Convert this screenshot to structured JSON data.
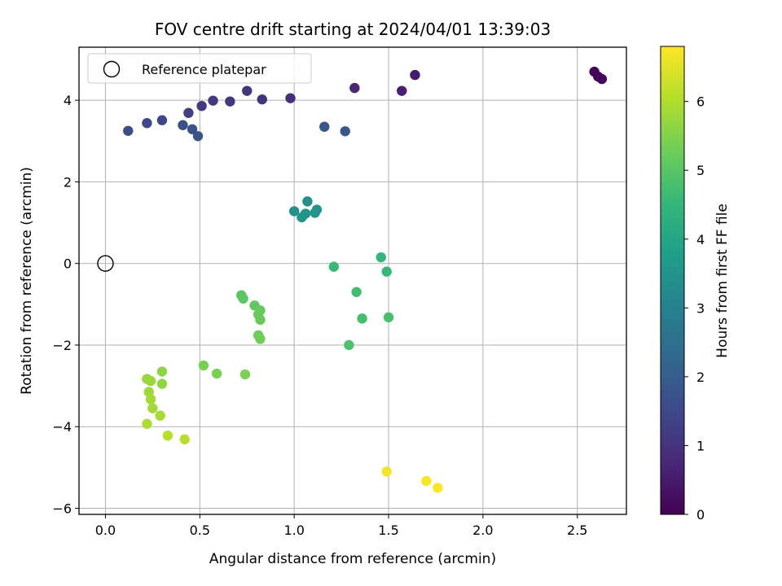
{
  "chart_data": {
    "type": "scatter",
    "title": "FOV centre drift starting at 2024/04/01 13:39:03",
    "xlabel": "Angular distance from reference (arcmin)",
    "ylabel": "Rotation from reference (arcmin)",
    "xlim": [
      -0.14,
      2.76
    ],
    "ylim": [
      -6.15,
      5.3
    ],
    "xticks": [
      0.0,
      0.5,
      1.0,
      1.5,
      2.0,
      2.5
    ],
    "xtick_labels": [
      "0.0",
      "0.5",
      "1.0",
      "1.5",
      "2.0",
      "2.5"
    ],
    "yticks": [
      -6,
      -4,
      -2,
      0,
      2,
      4
    ],
    "ytick_labels": [
      "−6",
      "−4",
      "−2",
      "0",
      "2",
      "4"
    ],
    "grid": true,
    "legend": {
      "location": "upper-left",
      "entries": [
        "Reference platepar"
      ]
    },
    "reference_point": {
      "x": 0.0,
      "y": 0.0,
      "label": "Reference platepar"
    },
    "colorbar": {
      "label": "Hours from first FF file",
      "range": [
        0,
        6.8
      ],
      "ticks": [
        0,
        1,
        2,
        3,
        4,
        5,
        6
      ],
      "tick_labels": [
        "0",
        "1",
        "2",
        "3",
        "4",
        "5",
        "6"
      ],
      "colormap": "viridis",
      "colormap_stops": [
        "#440154",
        "#482878",
        "#3e4989",
        "#31688e",
        "#26828e",
        "#1f9e89",
        "#35b779",
        "#6ece58",
        "#b5de2b",
        "#fde725"
      ]
    },
    "series": [
      {
        "name": "FOV centre positions",
        "points": [
          {
            "x": 2.59,
            "y": 4.7,
            "t": 0.05
          },
          {
            "x": 2.61,
            "y": 4.58,
            "t": 0.1
          },
          {
            "x": 2.63,
            "y": 4.52,
            "t": 0.15
          },
          {
            "x": 1.64,
            "y": 4.62,
            "t": 0.5
          },
          {
            "x": 1.57,
            "y": 4.23,
            "t": 0.6
          },
          {
            "x": 1.32,
            "y": 4.3,
            "t": 0.7
          },
          {
            "x": 0.98,
            "y": 4.05,
            "t": 0.9
          },
          {
            "x": 0.83,
            "y": 4.02,
            "t": 1.0
          },
          {
            "x": 0.75,
            "y": 4.23,
            "t": 1.05
          },
          {
            "x": 0.66,
            "y": 3.97,
            "t": 1.1
          },
          {
            "x": 0.57,
            "y": 3.99,
            "t": 1.15
          },
          {
            "x": 0.51,
            "y": 3.86,
            "t": 1.2
          },
          {
            "x": 0.44,
            "y": 3.69,
            "t": 1.3
          },
          {
            "x": 0.3,
            "y": 3.51,
            "t": 1.45
          },
          {
            "x": 0.22,
            "y": 3.44,
            "t": 1.5
          },
          {
            "x": 0.12,
            "y": 3.25,
            "t": 1.6
          },
          {
            "x": 0.41,
            "y": 3.39,
            "t": 1.65
          },
          {
            "x": 0.46,
            "y": 3.29,
            "t": 1.7
          },
          {
            "x": 0.49,
            "y": 3.12,
            "t": 1.75
          },
          {
            "x": 1.16,
            "y": 3.35,
            "t": 1.8
          },
          {
            "x": 1.27,
            "y": 3.24,
            "t": 1.85
          },
          {
            "x": 1.07,
            "y": 1.52,
            "t": 3.4
          },
          {
            "x": 1.0,
            "y": 1.28,
            "t": 3.45
          },
          {
            "x": 1.12,
            "y": 1.32,
            "t": 3.5
          },
          {
            "x": 1.06,
            "y": 1.22,
            "t": 3.5
          },
          {
            "x": 1.11,
            "y": 1.24,
            "t": 3.55
          },
          {
            "x": 1.04,
            "y": 1.13,
            "t": 3.55
          },
          {
            "x": 1.46,
            "y": 0.15,
            "t": 4.5
          },
          {
            "x": 1.49,
            "y": -0.2,
            "t": 4.55
          },
          {
            "x": 1.21,
            "y": -0.08,
            "t": 4.6
          },
          {
            "x": 1.33,
            "y": -0.7,
            "t": 4.7
          },
          {
            "x": 1.36,
            "y": -1.35,
            "t": 4.75
          },
          {
            "x": 1.5,
            "y": -1.32,
            "t": 4.8
          },
          {
            "x": 1.29,
            "y": -2.0,
            "t": 4.85
          },
          {
            "x": 0.72,
            "y": -0.78,
            "t": 5.0
          },
          {
            "x": 0.73,
            "y": -0.86,
            "t": 5.05
          },
          {
            "x": 0.79,
            "y": -1.03,
            "t": 5.1
          },
          {
            "x": 0.82,
            "y": -1.15,
            "t": 5.15
          },
          {
            "x": 0.81,
            "y": -1.25,
            "t": 5.2
          },
          {
            "x": 0.82,
            "y": -1.38,
            "t": 5.2
          },
          {
            "x": 0.81,
            "y": -1.76,
            "t": 5.25
          },
          {
            "x": 0.82,
            "y": -1.85,
            "t": 5.3
          },
          {
            "x": 0.52,
            "y": -2.5,
            "t": 5.4
          },
          {
            "x": 0.59,
            "y": -2.7,
            "t": 5.4
          },
          {
            "x": 0.74,
            "y": -2.72,
            "t": 5.45
          },
          {
            "x": 0.3,
            "y": -2.65,
            "t": 5.6
          },
          {
            "x": 0.3,
            "y": -2.95,
            "t": 5.65
          },
          {
            "x": 0.22,
            "y": -2.83,
            "t": 5.75
          },
          {
            "x": 0.24,
            "y": -2.88,
            "t": 5.75
          },
          {
            "x": 0.23,
            "y": -3.15,
            "t": 5.8
          },
          {
            "x": 0.24,
            "y": -3.33,
            "t": 5.85
          },
          {
            "x": 0.25,
            "y": -3.55,
            "t": 5.85
          },
          {
            "x": 0.29,
            "y": -3.73,
            "t": 5.9
          },
          {
            "x": 0.22,
            "y": -3.93,
            "t": 5.95
          },
          {
            "x": 0.33,
            "y": -4.22,
            "t": 6.05
          },
          {
            "x": 0.42,
            "y": -4.31,
            "t": 6.1
          },
          {
            "x": 1.49,
            "y": -5.1,
            "t": 6.7
          },
          {
            "x": 1.7,
            "y": -5.33,
            "t": 6.75
          },
          {
            "x": 1.76,
            "y": -5.5,
            "t": 6.8
          }
        ]
      }
    ]
  }
}
